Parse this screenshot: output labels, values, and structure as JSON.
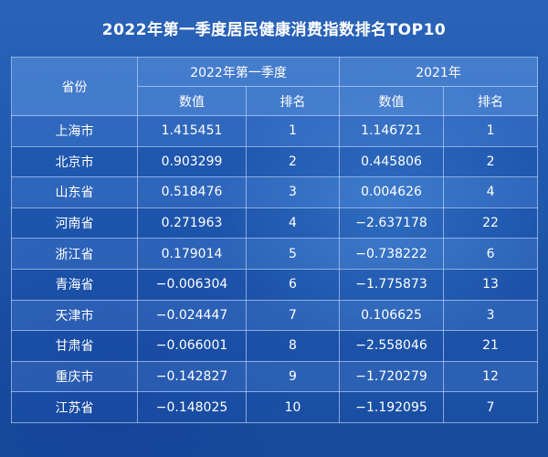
{
  "chart_data": {
    "type": "table",
    "title": "2022年第一季度居民健康消费指数排名TOP10",
    "headers": {
      "province": "省份",
      "group_2022q1": "2022年第一季度",
      "group_2021": "2021年",
      "value": "数值",
      "rank": "排名"
    },
    "rows": [
      {
        "province": "上海市",
        "v2022": "1.415451",
        "r2022": "1",
        "v2021": "1.146721",
        "r2021": "1"
      },
      {
        "province": "北京市",
        "v2022": "0.903299",
        "r2022": "2",
        "v2021": "0.445806",
        "r2021": "2"
      },
      {
        "province": "山东省",
        "v2022": "0.518476",
        "r2022": "3",
        "v2021": "0.004626",
        "r2021": "4"
      },
      {
        "province": "河南省",
        "v2022": "0.271963",
        "r2022": "4",
        "v2021": "−2.637178",
        "r2021": "22"
      },
      {
        "province": "浙江省",
        "v2022": "0.179014",
        "r2022": "5",
        "v2021": "−0.738222",
        "r2021": "6"
      },
      {
        "province": "青海省",
        "v2022": "−0.006304",
        "r2022": "6",
        "v2021": "−1.775873",
        "r2021": "13"
      },
      {
        "province": "天津市",
        "v2022": "−0.024447",
        "r2022": "7",
        "v2021": "0.106625",
        "r2021": "3"
      },
      {
        "province": "甘肃省",
        "v2022": "−0.066001",
        "r2022": "8",
        "v2021": "−2.558046",
        "r2021": "21"
      },
      {
        "province": "重庆市",
        "v2022": "−0.142827",
        "r2022": "9",
        "v2021": "−1.720279",
        "r2021": "12"
      },
      {
        "province": "江苏省",
        "v2022": "−0.148025",
        "r2022": "10",
        "v2021": "−1.192095",
        "r2021": "7"
      }
    ]
  }
}
